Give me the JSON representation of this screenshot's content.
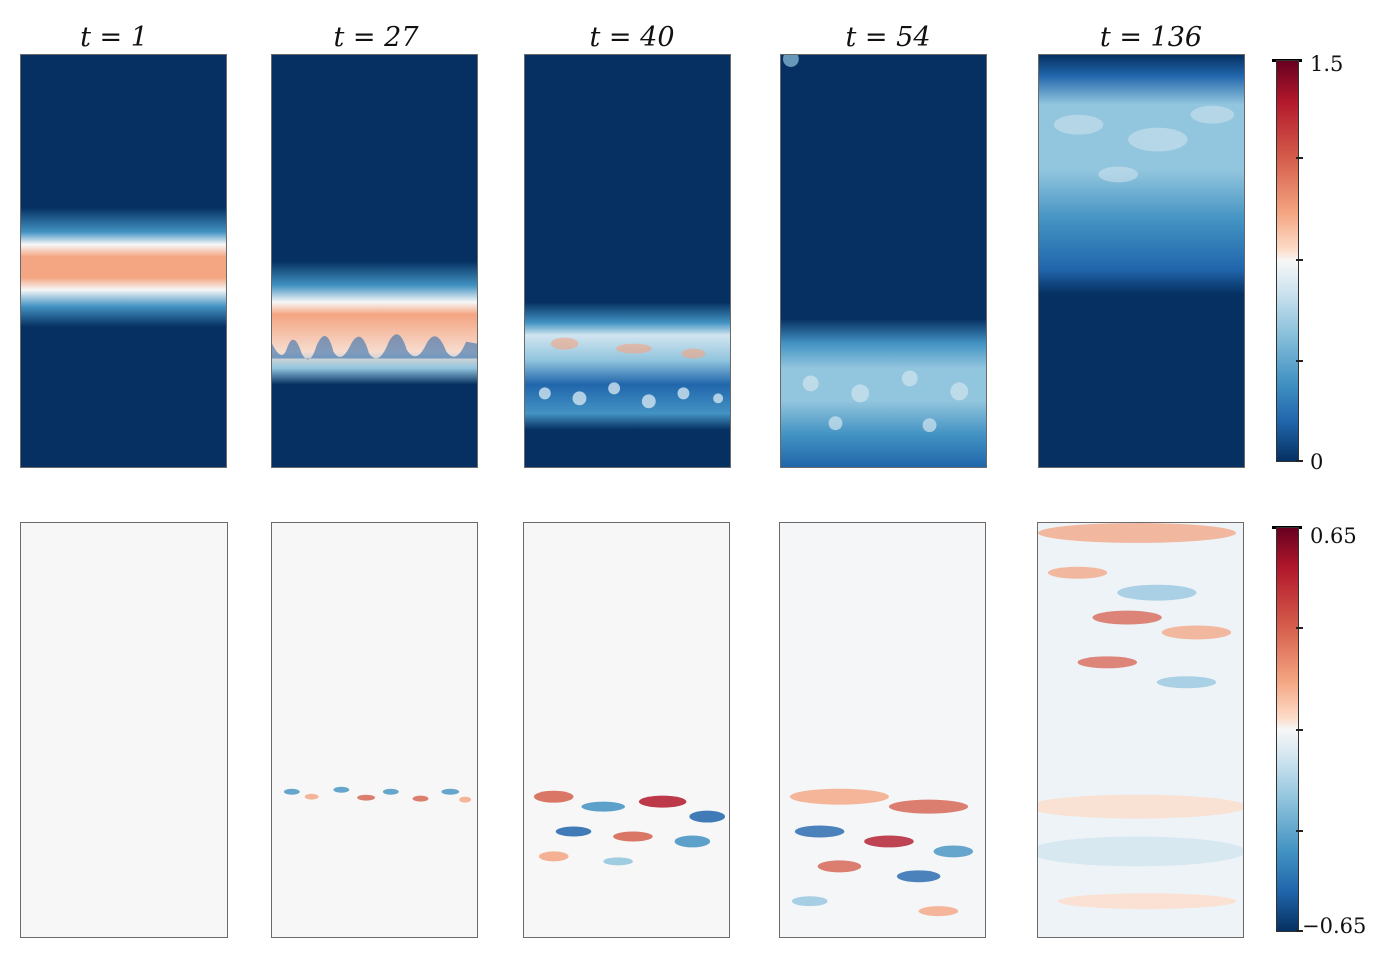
{
  "titles": [
    "t = 1",
    "t = 27",
    "t = 40",
    "t = 54",
    "t = 136"
  ],
  "colorbar_top": {
    "max_label": "1.5",
    "min_label": "0"
  },
  "colorbar_bottom": {
    "max_label": "0.65",
    "min_label": "−0.65"
  },
  "colors": {
    "deep_blue": "#053061",
    "mid_blue": "#2166ac",
    "light_blue": "#92c5de",
    "white": "#f7f7f7",
    "salmon": "#f4a582",
    "red": "#b2182b",
    "dark_red": "#67001f"
  }
}
